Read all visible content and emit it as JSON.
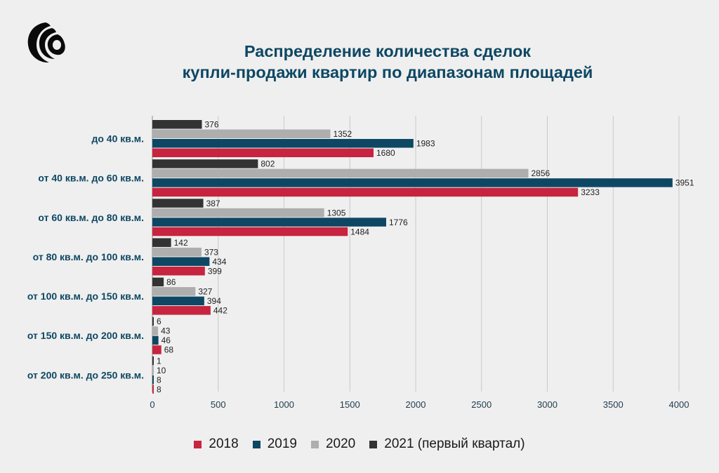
{
  "header": {
    "title_line1": "Распределение количества сделок",
    "title_line2": "купли-продажи квартир по диапазонам площадей"
  },
  "logo": {
    "icon": "swirl-logo-icon",
    "color": "#0a0a0a"
  },
  "chart_data": {
    "type": "bar",
    "orientation": "horizontal",
    "title": "Распределение количества сделок купли-продажи квартир по диапазонам площадей",
    "categories": [
      "до 40 кв.м.",
      "от 40 кв.м. до 60 кв.м.",
      "от 60 кв.м. до 80 кв.м.",
      "от 80 кв.м. до 100 кв.м.",
      "от 100 кв.м. до 150 кв.м.",
      "от 150 кв.м. до 200 кв.м.",
      "от 200 кв.м. до 250 кв.м."
    ],
    "series": [
      {
        "name": "2021 (первый квартал)",
        "color": "#333333",
        "values": [
          376,
          802,
          387,
          142,
          86,
          6,
          1
        ]
      },
      {
        "name": "2020",
        "color": "#aeaeae",
        "values": [
          1352,
          2856,
          1305,
          373,
          327,
          43,
          10
        ]
      },
      {
        "name": "2019",
        "color": "#0d4763",
        "values": [
          1983,
          3951,
          1776,
          434,
          394,
          46,
          8
        ]
      },
      {
        "name": "2018",
        "color": "#c7243f",
        "values": [
          1680,
          3233,
          1484,
          399,
          442,
          68,
          8
        ]
      }
    ],
    "legend_order": [
      "2018",
      "2019",
      "2020",
      "2021 (первый квартал)"
    ],
    "xlim": [
      0,
      4000
    ],
    "xticks": [
      0,
      500,
      1000,
      1500,
      2000,
      2500,
      3000,
      3500,
      4000
    ],
    "xlabel": "",
    "ylabel": "",
    "grid": true,
    "legend_position": "bottom"
  }
}
